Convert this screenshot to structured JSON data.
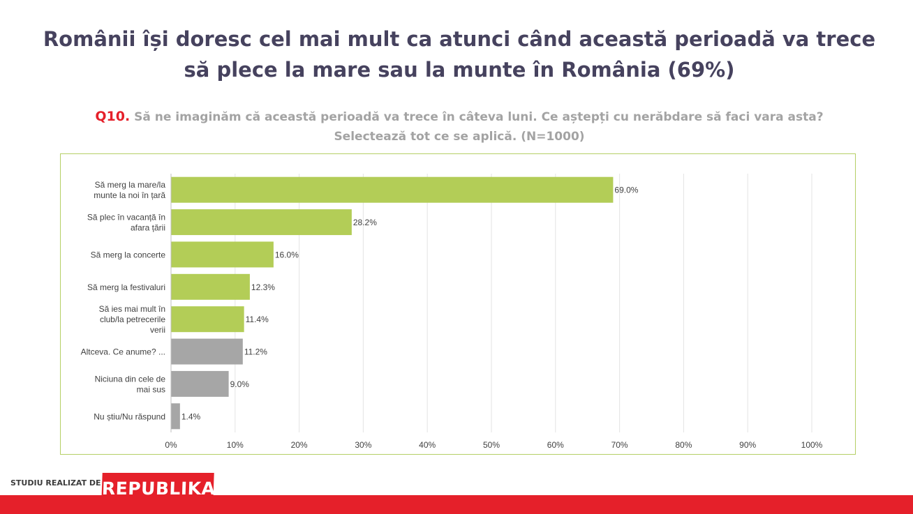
{
  "title": {
    "line1": "Românii își doresc cel mai mult ca atunci când această perioadă va trece",
    "line2": "să plece la mare sau la munte în România (69%)"
  },
  "question": {
    "number": "Q10.",
    "line1": "Să ne imaginăm că această perioadă va trece în câteva luni. Ce aștepți cu nerăbdare să faci vara asta?",
    "line2": "Selectează tot ce se aplică.  (N=1000)"
  },
  "footer": {
    "label": "STUDIU REALIZAT DE",
    "brand": "REPUBLIKA"
  },
  "colors": {
    "accent_green": "#b3cd57",
    "neutral_gray": "#a6a6a6",
    "brand_red": "#e5202a",
    "title_color": "#46425e"
  },
  "chart_data": {
    "type": "bar",
    "orientation": "horizontal",
    "categories": [
      [
        "Să merg la mare/la",
        "munte la noi în țară"
      ],
      [
        "Să plec în vacanță în",
        "afara țării"
      ],
      [
        "Să merg la concerte"
      ],
      [
        "Să merg la festivaluri"
      ],
      [
        "Să ies mai mult în",
        "club/la petrecerile",
        "verii"
      ],
      [
        "Altceva. Ce anume? ..."
      ],
      [
        "Niciuna din cele de",
        "mai sus"
      ],
      [
        "Nu știu/Nu răspund"
      ]
    ],
    "values": [
      69.0,
      28.2,
      16.0,
      12.3,
      11.4,
      11.2,
      9.0,
      1.4
    ],
    "value_labels": [
      "69.0%",
      "28.2%",
      "16.0%",
      "12.3%",
      "11.4%",
      "11.2%",
      "9.0%",
      "1.4%"
    ],
    "bar_colors": [
      "#b3cd57",
      "#b3cd57",
      "#b3cd57",
      "#b3cd57",
      "#b3cd57",
      "#a6a6a6",
      "#a6a6a6",
      "#a6a6a6"
    ],
    "xlim": [
      0,
      100
    ],
    "xticks": [
      "0%",
      "10%",
      "20%",
      "30%",
      "40%",
      "50%",
      "60%",
      "70%",
      "80%",
      "90%",
      "100%"
    ],
    "grid": "vertical"
  }
}
